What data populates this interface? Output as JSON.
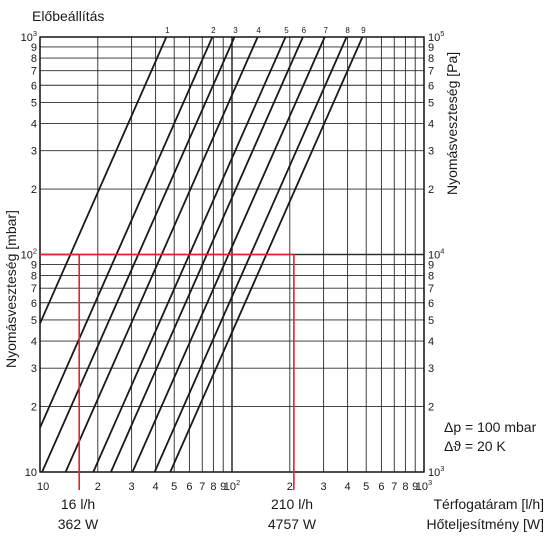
{
  "chart_data": {
    "type": "line",
    "title": "Előbeállítás",
    "xlabel": "Térfogatáram [l/h]",
    "xlabel2": "Hőteljesítmény [W]",
    "ylabel_left": "Nyomásveszteség [mbar]",
    "ylabel_right": "Nyomásveszteség [Pa]",
    "x_scale": "log",
    "y_scale": "log",
    "xlim": [
      10,
      1000
    ],
    "ylim": [
      10,
      1000
    ],
    "ylim_right": [
      1000,
      100000
    ],
    "grid": true,
    "legend": "none",
    "x_tick_labels": [
      {
        "v": 10,
        "t": "10"
      },
      {
        "v": 20,
        "t": "2"
      },
      {
        "v": 30,
        "t": "3"
      },
      {
        "v": 40,
        "t": "4"
      },
      {
        "v": 50,
        "t": "5"
      },
      {
        "v": 60,
        "t": "6"
      },
      {
        "v": 70,
        "t": "7"
      },
      {
        "v": 80,
        "t": "8"
      },
      {
        "v": 90,
        "t": "9"
      },
      {
        "v": 100,
        "t": "10",
        "sup": "2"
      },
      {
        "v": 200,
        "t": "2"
      },
      {
        "v": 300,
        "t": "3"
      },
      {
        "v": 400,
        "t": "4"
      },
      {
        "v": 500,
        "t": "5"
      },
      {
        "v": 600,
        "t": "6"
      },
      {
        "v": 700,
        "t": "7"
      },
      {
        "v": 800,
        "t": "8"
      },
      {
        "v": 900,
        "t": "9"
      },
      {
        "v": 1000,
        "t": "10",
        "sup": "3"
      }
    ],
    "y_tick_labels": [
      {
        "v": 10,
        "t": "10"
      },
      {
        "v": 20,
        "t": "2"
      },
      {
        "v": 30,
        "t": "3"
      },
      {
        "v": 40,
        "t": "4"
      },
      {
        "v": 50,
        "t": "5"
      },
      {
        "v": 60,
        "t": "6"
      },
      {
        "v": 70,
        "t": "7"
      },
      {
        "v": 80,
        "t": "8"
      },
      {
        "v": 90,
        "t": "9"
      },
      {
        "v": 100,
        "t": "10",
        "sup": "2"
      },
      {
        "v": 200,
        "t": "2"
      },
      {
        "v": 300,
        "t": "3"
      },
      {
        "v": 400,
        "t": "4"
      },
      {
        "v": 500,
        "t": "5"
      },
      {
        "v": 600,
        "t": "6"
      },
      {
        "v": 700,
        "t": "7"
      },
      {
        "v": 800,
        "t": "8"
      },
      {
        "v": 900,
        "t": "9"
      },
      {
        "v": 1000,
        "t": "10",
        "sup": "3"
      }
    ],
    "y_right_tick_labels": [
      {
        "v": 10,
        "t": "10",
        "sup": "3"
      },
      {
        "v": 20,
        "t": "2"
      },
      {
        "v": 30,
        "t": "3"
      },
      {
        "v": 40,
        "t": "4"
      },
      {
        "v": 50,
        "t": "5"
      },
      {
        "v": 60,
        "t": "6"
      },
      {
        "v": 70,
        "t": "7"
      },
      {
        "v": 80,
        "t": "8"
      },
      {
        "v": 90,
        "t": "9"
      },
      {
        "v": 100,
        "t": "10",
        "sup": "4"
      },
      {
        "v": 200,
        "t": "2"
      },
      {
        "v": 300,
        "t": "3"
      },
      {
        "v": 400,
        "t": "4"
      },
      {
        "v": 500,
        "t": "5"
      },
      {
        "v": 600,
        "t": "6"
      },
      {
        "v": 700,
        "t": "7"
      },
      {
        "v": 800,
        "t": "8"
      },
      {
        "v": 900,
        "t": "9"
      },
      {
        "v": 1000,
        "t": "10",
        "sup": "5"
      }
    ],
    "series": [
      {
        "name": "1",
        "flow_at_100mbar": 14.4,
        "flow_at_1000mbar": 45.5
      },
      {
        "name": "2",
        "flow_at_100mbar": 25,
        "flow_at_1000mbar": 79
      },
      {
        "name": "3",
        "flow_at_100mbar": 32.5,
        "flow_at_1000mbar": 103
      },
      {
        "name": "4",
        "flow_at_100mbar": 43,
        "flow_at_1000mbar": 136
      },
      {
        "name": "5",
        "flow_at_100mbar": 60,
        "flow_at_1000mbar": 190
      },
      {
        "name": "6",
        "flow_at_100mbar": 74,
        "flow_at_1000mbar": 234
      },
      {
        "name": "7",
        "flow_at_100mbar": 96,
        "flow_at_1000mbar": 304
      },
      {
        "name": "8",
        "flow_at_100mbar": 125,
        "flow_at_1000mbar": 395
      },
      {
        "name": "9",
        "flow_at_100mbar": 151,
        "flow_at_1000mbar": 478
      }
    ],
    "markers": [
      {
        "flow": 16,
        "pressure": 100,
        "flow_label": "16 l/h",
        "power_label": "362 W",
        "color": "#e0262a"
      },
      {
        "flow": 210,
        "pressure": 100,
        "flow_label": "210 l/h",
        "power_label": "4757 W",
        "color": "#e0262a"
      }
    ],
    "params": {
      "dp": "Δp = 100 mbar",
      "dtheta": "Δϑ = 20 K"
    }
  }
}
